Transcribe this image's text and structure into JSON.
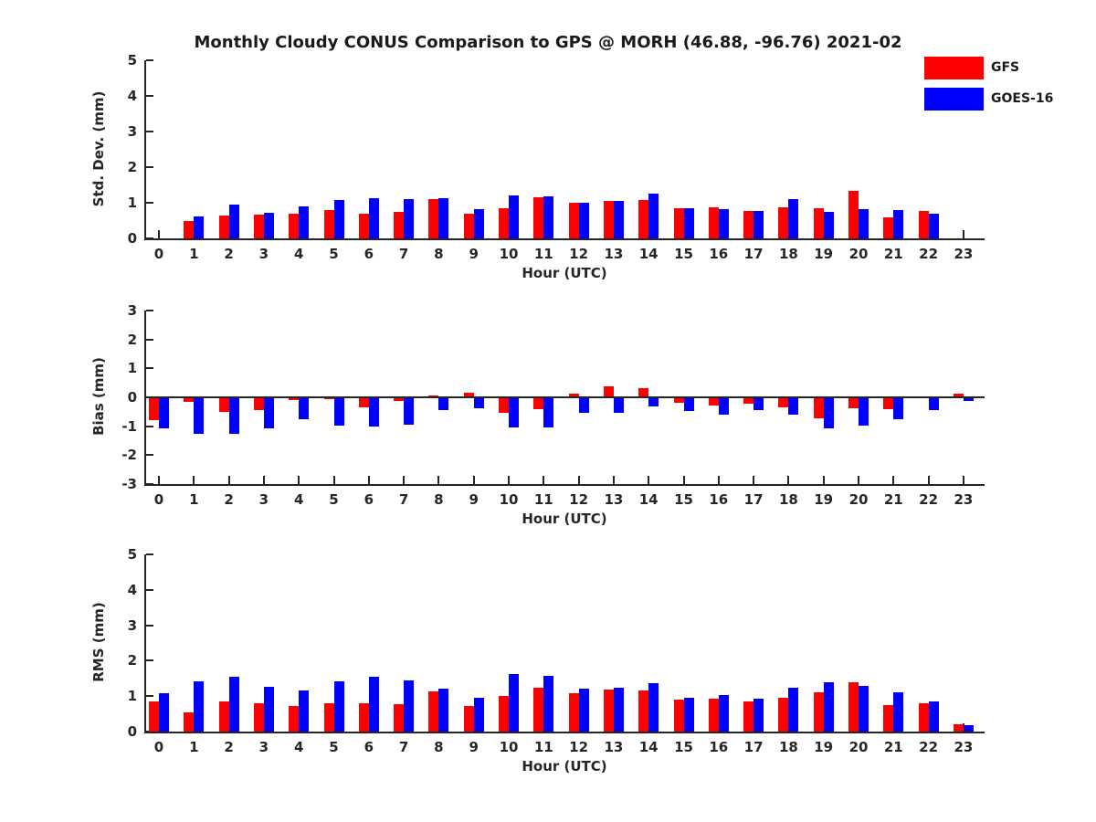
{
  "title": "Monthly Cloudy CONUS Comparison to GPS @ MORH (46.88, -96.76) 2021-02",
  "legend": {
    "position": "top-right",
    "items": [
      {
        "label": "GFS",
        "color": "#ff0000"
      },
      {
        "label": "GOES-16",
        "color": "#0000ff"
      }
    ]
  },
  "chart_data": [
    {
      "type": "bar",
      "panel": "stddev",
      "ylabel": "Std. Dev. (mm)",
      "xlabel": "Hour (UTC)",
      "ylim": [
        0,
        5
      ],
      "ytick_step": 1,
      "grid": false,
      "categories": [
        0,
        1,
        2,
        3,
        4,
        5,
        6,
        7,
        8,
        9,
        10,
        11,
        12,
        13,
        14,
        15,
        16,
        17,
        18,
        19,
        20,
        21,
        22,
        23
      ],
      "series": [
        {
          "name": "GFS",
          "color": "#ff0000",
          "values": [
            null,
            0.49,
            0.63,
            0.67,
            0.69,
            0.79,
            0.7,
            0.74,
            1.11,
            0.68,
            0.84,
            1.15,
            1.01,
            1.05,
            1.07,
            0.84,
            0.87,
            0.78,
            0.86,
            0.84,
            1.33,
            0.58,
            0.77,
            null
          ]
        },
        {
          "name": "GOES-16",
          "color": "#0000ff",
          "values": [
            null,
            0.62,
            0.95,
            0.72,
            0.89,
            1.08,
            1.14,
            1.1,
            1.12,
            0.83,
            1.2,
            1.17,
            1.0,
            1.06,
            1.26,
            0.84,
            0.82,
            0.78,
            1.09,
            0.74,
            0.81,
            0.8,
            0.69,
            null
          ]
        }
      ]
    },
    {
      "type": "bar",
      "panel": "bias",
      "ylabel": "Bias (mm)",
      "xlabel": "Hour (UTC)",
      "ylim": [
        -3,
        3
      ],
      "ytick_step": 1,
      "grid": false,
      "categories": [
        0,
        1,
        2,
        3,
        4,
        5,
        6,
        7,
        8,
        9,
        10,
        11,
        12,
        13,
        14,
        15,
        16,
        17,
        18,
        19,
        20,
        21,
        22,
        23
      ],
      "series": [
        {
          "name": "GFS",
          "color": "#ff0000",
          "values": [
            -0.78,
            -0.16,
            -0.5,
            -0.45,
            -0.1,
            -0.05,
            -0.35,
            -0.12,
            0.07,
            0.15,
            -0.55,
            -0.42,
            0.13,
            0.37,
            0.32,
            -0.19,
            -0.28,
            -0.23,
            -0.35,
            -0.74,
            -0.37,
            -0.42,
            0.0,
            0.14
          ]
        },
        {
          "name": "GOES-16",
          "color": "#0000ff",
          "values": [
            -1.08,
            -1.27,
            -1.25,
            -1.08,
            -0.77,
            -0.97,
            -1.0,
            -0.95,
            -0.45,
            -0.37,
            -1.03,
            -1.05,
            -0.55,
            -0.55,
            -0.3,
            -0.47,
            -0.6,
            -0.44,
            -0.6,
            -1.08,
            -0.98,
            -0.77,
            -0.45,
            -0.12
          ]
        }
      ]
    },
    {
      "type": "bar",
      "panel": "rms",
      "ylabel": "RMS (mm)",
      "xlabel": "Hour (UTC)",
      "ylim": [
        0,
        5
      ],
      "ytick_step": 1,
      "grid": false,
      "categories": [
        0,
        1,
        2,
        3,
        4,
        5,
        6,
        7,
        8,
        9,
        10,
        11,
        12,
        13,
        14,
        15,
        16,
        17,
        18,
        19,
        20,
        21,
        22,
        23
      ],
      "series": [
        {
          "name": "GFS",
          "color": "#ff0000",
          "values": [
            0.84,
            0.53,
            0.86,
            0.81,
            0.71,
            0.81,
            0.79,
            0.78,
            1.14,
            0.73,
            1.0,
            1.23,
            1.09,
            1.19,
            1.16,
            0.89,
            0.94,
            0.85,
            0.95,
            1.1,
            1.38,
            0.76,
            0.8,
            0.21
          ]
        },
        {
          "name": "GOES-16",
          "color": "#0000ff",
          "values": [
            1.09,
            1.42,
            1.55,
            1.27,
            1.16,
            1.42,
            1.54,
            1.45,
            1.22,
            0.95,
            1.62,
            1.57,
            1.21,
            1.23,
            1.37,
            0.96,
            1.04,
            0.92,
            1.25,
            1.38,
            1.28,
            1.11,
            0.86,
            0.17
          ]
        }
      ]
    }
  ]
}
